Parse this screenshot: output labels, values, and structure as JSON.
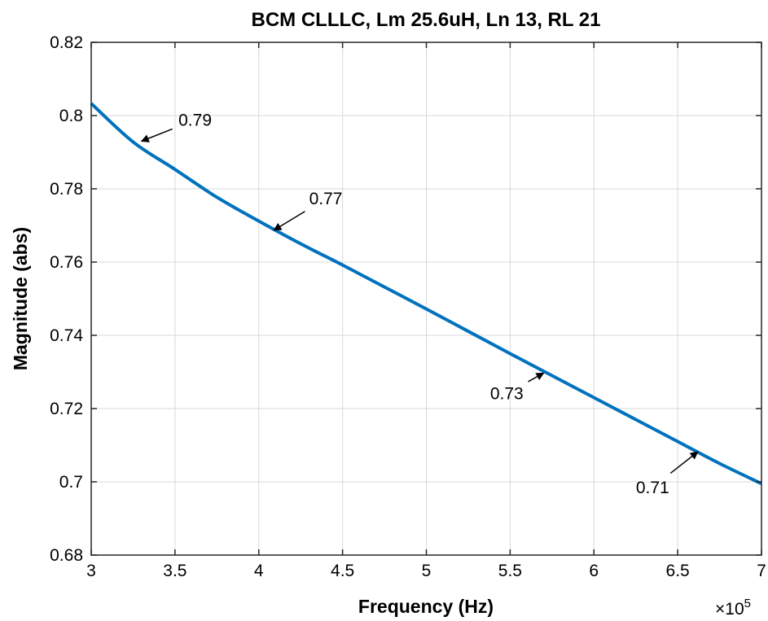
{
  "chart_data": {
    "type": "line",
    "title": "BCM CLLLC, Lm 25.6uH, Ln 13, RL 21",
    "xlabel": "Frequency  (Hz)",
    "ylabel": "Magnitude (abs)",
    "x_multiplier_label": "×10",
    "x_multiplier_exponent": "5",
    "xlim": [
      3,
      7
    ],
    "ylim": [
      0.68,
      0.82
    ],
    "xticks": [
      3,
      3.5,
      4,
      4.5,
      5,
      5.5,
      6,
      6.5,
      7
    ],
    "xtick_labels": [
      "3",
      "3.5",
      "4",
      "4.5",
      "5",
      "5.5",
      "6",
      "6.5",
      "7"
    ],
    "yticks": [
      0.68,
      0.7,
      0.72,
      0.74,
      0.76,
      0.78,
      0.8,
      0.82
    ],
    "ytick_labels": [
      "0.68",
      "0.7",
      "0.72",
      "0.74",
      "0.76",
      "0.78",
      "0.8",
      "0.82"
    ],
    "grid": true,
    "series": [
      {
        "color": "#0072bd",
        "x": [
          3.0,
          3.25,
          3.5,
          3.75,
          4.0,
          4.25,
          4.5,
          4.75,
          5.0,
          5.25,
          5.5,
          5.75,
          6.0,
          6.25,
          6.5,
          6.75,
          7.0
        ],
        "y": [
          0.8033,
          0.7928,
          0.7853,
          0.7777,
          0.7712,
          0.765,
          0.7592,
          0.7532,
          0.7472,
          0.7411,
          0.735,
          0.729,
          0.723,
          0.717,
          0.711,
          0.705,
          0.6995
        ]
      }
    ],
    "annotations": [
      {
        "text": "0.79",
        "x": 3.3,
        "y": 0.793,
        "text_x": 3.62,
        "text_y": 0.7988
      },
      {
        "text": "0.77",
        "x": 4.09,
        "y": 0.7687,
        "text_x": 4.4,
        "text_y": 0.7773
      },
      {
        "text": "0.73",
        "x": 5.7,
        "y": 0.7297,
        "text_x": 5.48,
        "text_y": 0.7241
      },
      {
        "text": "0.71",
        "x": 6.62,
        "y": 0.7082,
        "text_x": 6.35,
        "text_y": 0.6985
      }
    ]
  }
}
